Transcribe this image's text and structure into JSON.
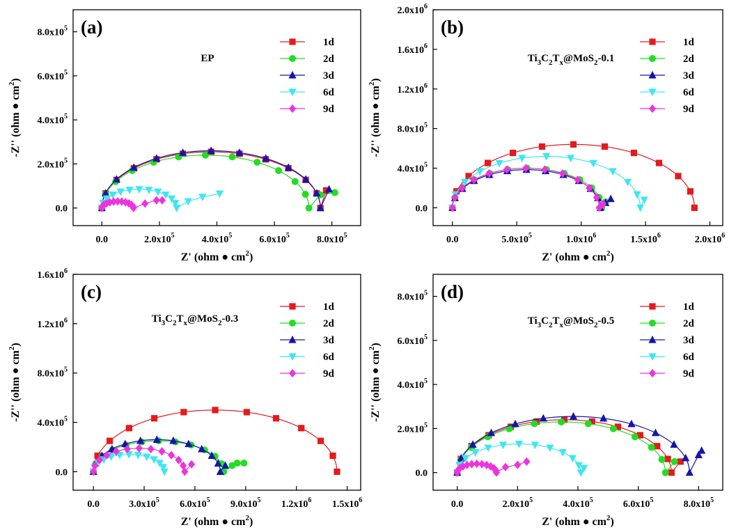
{
  "colors": {
    "1d": "#e41a1c",
    "2d": "#22dd22",
    "3d": "#1515aa",
    "6d": "#3fe6f2",
    "9d": "#ee33dd"
  },
  "chart_data": [
    {
      "type": "scatter",
      "panel": "(a)",
      "annotation": "EP",
      "x_range": [
        -100000,
        900000
      ],
      "y_range": [
        -80000,
        900000
      ],
      "x_ticks": [
        {
          "v": 0,
          "m": "0.0",
          "e": ""
        },
        {
          "v": 200000,
          "m": "2.0x10",
          "e": "5"
        },
        {
          "v": 400000,
          "m": "4.0x10",
          "e": "5"
        },
        {
          "v": 600000,
          "m": "6.0x10",
          "e": "5"
        },
        {
          "v": 800000,
          "m": "8.0x10",
          "e": "5"
        }
      ],
      "y_ticks": [
        {
          "v": 0,
          "m": "0.0",
          "e": ""
        },
        {
          "v": 200000,
          "m": "2.0x10",
          "e": "5"
        },
        {
          "v": 400000,
          "m": "4.0x10",
          "e": "5"
        },
        {
          "v": 600000,
          "m": "6.0x10",
          "e": "5"
        },
        {
          "v": 800000,
          "m": "8.0x10",
          "e": "5"
        }
      ],
      "series": [
        {
          "name": "1d",
          "marker": "square",
          "semicircle": {
            "x0": 0,
            "x1": 760000,
            "h": 255000
          },
          "tail": [
            [
              780000,
              80000
            ]
          ]
        },
        {
          "name": "2d",
          "marker": "circle",
          "semicircle": {
            "x0": 0,
            "x1": 720000,
            "h": 240000
          },
          "tail": [
            [
              760000,
              60000
            ],
            [
              810000,
              70000
            ]
          ]
        },
        {
          "name": "3d",
          "marker": "triangle-up",
          "semicircle": {
            "x0": 0,
            "x1": 760000,
            "h": 260000
          },
          "tail": [
            [
              790000,
              85000
            ]
          ]
        },
        {
          "name": "6d",
          "marker": "triangle-down",
          "semicircle": {
            "x0": 0,
            "x1": 260000,
            "h": 85000
          },
          "tail": [
            [
              300000,
              30000
            ],
            [
              350000,
              50000
            ],
            [
              410000,
              65000
            ]
          ]
        },
        {
          "name": "9d",
          "marker": "diamond",
          "semicircle": {
            "x0": 0,
            "x1": 110000,
            "h": 30000
          },
          "tail": [
            [
              150000,
              20000
            ],
            [
              190000,
              35000
            ],
            [
              210000,
              35000
            ]
          ]
        }
      ]
    },
    {
      "type": "scatter",
      "panel": "(b)",
      "annotation": {
        "pre": "Ti",
        "s1": "3",
        "m1": "C",
        "s2": "2",
        "m2": "T",
        "s3": "x",
        "m3": "@MoS",
        "s4": "2",
        "post": "-0.1"
      },
      "x_range": [
        -150000,
        2100000
      ],
      "y_range": [
        -180000,
        2000000
      ],
      "x_ticks": [
        {
          "v": 0,
          "m": "0.0",
          "e": ""
        },
        {
          "v": 500000,
          "m": "5.0x10",
          "e": "5"
        },
        {
          "v": 1000000,
          "m": "1.0x10",
          "e": "6"
        },
        {
          "v": 1500000,
          "m": "1.5x10",
          "e": "6"
        },
        {
          "v": 2000000,
          "m": "2.0x10",
          "e": "6"
        }
      ],
      "y_ticks": [
        {
          "v": 0,
          "m": "0.0",
          "e": ""
        },
        {
          "v": 400000,
          "m": "4.0x10",
          "e": "5"
        },
        {
          "v": 800000,
          "m": "8.0x10",
          "e": "5"
        },
        {
          "v": 1200000,
          "m": "1.2x10",
          "e": "6"
        },
        {
          "v": 1600000,
          "m": "1.6x10",
          "e": "6"
        },
        {
          "v": 2000000,
          "m": "2.0x10",
          "e": "6"
        }
      ],
      "series": [
        {
          "name": "1d",
          "marker": "square",
          "semicircle": {
            "x0": 0,
            "x1": 1880000,
            "h": 640000
          },
          "tail": []
        },
        {
          "name": "2d",
          "marker": "circle",
          "semicircle": {
            "x0": 0,
            "x1": 1160000,
            "h": 400000
          },
          "tail": [
            [
              1190000,
              60000
            ]
          ]
        },
        {
          "name": "3d",
          "marker": "triangle-up",
          "semicircle": {
            "x0": 0,
            "x1": 1150000,
            "h": 385000
          },
          "tail": [
            [
              1190000,
              50000
            ],
            [
              1230000,
              90000
            ]
          ]
        },
        {
          "name": "6d",
          "marker": "triangle-down",
          "semicircle": {
            "x0": 0,
            "x1": 1460000,
            "h": 520000
          },
          "tail": [
            [
              1490000,
              80000
            ]
          ]
        },
        {
          "name": "9d",
          "marker": "diamond",
          "semicircle": {
            "x0": 0,
            "x1": 1140000,
            "h": 400000
          },
          "tail": [
            [
              1170000,
              40000
            ]
          ]
        }
      ]
    },
    {
      "type": "scatter",
      "panel": "(c)",
      "annotation": {
        "pre": "Ti",
        "s1": "3",
        "m1": "C",
        "s2": "2",
        "m2": "T",
        "s3": "x",
        "m3": "@MoS",
        "s4": "2",
        "post": "-0.3"
      },
      "x_range": [
        -120000,
        1580000
      ],
      "y_range": [
        -150000,
        1600000
      ],
      "x_ticks": [
        {
          "v": 0,
          "m": "0.0",
          "e": ""
        },
        {
          "v": 300000,
          "m": "3.0x10",
          "e": "5"
        },
        {
          "v": 600000,
          "m": "6.0x10",
          "e": "5"
        },
        {
          "v": 900000,
          "m": "9.0x10",
          "e": "5"
        },
        {
          "v": 1200000,
          "m": "1.2x10",
          "e": "6"
        },
        {
          "v": 1500000,
          "m": "1.5x10",
          "e": "6"
        }
      ],
      "y_ticks": [
        {
          "v": 0,
          "m": "0.0",
          "e": ""
        },
        {
          "v": 400000,
          "m": "4.0x10",
          "e": "5"
        },
        {
          "v": 800000,
          "m": "8.0x10",
          "e": "5"
        },
        {
          "v": 1200000,
          "m": "1.2x10",
          "e": "6"
        },
        {
          "v": 1600000,
          "m": "1.6x10",
          "e": "6"
        }
      ],
      "series": [
        {
          "name": "1d",
          "marker": "square",
          "semicircle": {
            "x0": 0,
            "x1": 1440000,
            "h": 500000
          },
          "tail": []
        },
        {
          "name": "2d",
          "marker": "circle",
          "semicircle": {
            "x0": 0,
            "x1": 770000,
            "h": 250000
          },
          "tail": [
            [
              820000,
              50000
            ],
            [
              850000,
              70000
            ],
            [
              890000,
              70000
            ]
          ]
        },
        {
          "name": "3d",
          "marker": "triangle-up",
          "semicircle": {
            "x0": 0,
            "x1": 750000,
            "h": 260000
          },
          "tail": [
            [
              780000,
              50000
            ]
          ]
        },
        {
          "name": "6d",
          "marker": "triangle-down",
          "semicircle": {
            "x0": 0,
            "x1": 420000,
            "h": 140000
          },
          "tail": []
        },
        {
          "name": "9d",
          "marker": "diamond",
          "semicircle": {
            "x0": 0,
            "x1": 540000,
            "h": 190000
          },
          "tail": [
            [
              580000,
              60000
            ]
          ]
        }
      ]
    },
    {
      "type": "scatter",
      "panel": "(d)",
      "annotation": {
        "pre": "Ti",
        "s1": "3",
        "m1": "C",
        "s2": "2",
        "m2": "T",
        "s3": "x",
        "m3": "@MoS",
        "s4": "2",
        "post": "-0.5"
      },
      "x_range": [
        -80000,
        880000
      ],
      "y_range": [
        -80000,
        900000
      ],
      "x_ticks": [
        {
          "v": 0,
          "m": "0.0",
          "e": ""
        },
        {
          "v": 200000,
          "m": "2.0x10",
          "e": "5"
        },
        {
          "v": 400000,
          "m": "4.0x10",
          "e": "5"
        },
        {
          "v": 600000,
          "m": "6.0x10",
          "e": "5"
        },
        {
          "v": 800000,
          "m": "8.0x10",
          "e": "5"
        }
      ],
      "y_ticks": [
        {
          "v": 0,
          "m": "0.0",
          "e": ""
        },
        {
          "v": 200000,
          "m": "2.0x10",
          "e": "5"
        },
        {
          "v": 400000,
          "m": "4.0x10",
          "e": "5"
        },
        {
          "v": 600000,
          "m": "6.0x10",
          "e": "5"
        },
        {
          "v": 800000,
          "m": "8.0x10",
          "e": "5"
        }
      ],
      "series": [
        {
          "name": "1d",
          "marker": "square",
          "semicircle": {
            "x0": 0,
            "x1": 710000,
            "h": 240000
          },
          "tail": [
            [
              740000,
              50000
            ]
          ]
        },
        {
          "name": "2d",
          "marker": "circle",
          "semicircle": {
            "x0": 0,
            "x1": 690000,
            "h": 230000
          },
          "tail": [
            [
              720000,
              50000
            ]
          ]
        },
        {
          "name": "3d",
          "marker": "triangle-up",
          "semicircle": {
            "x0": 0,
            "x1": 770000,
            "h": 255000
          },
          "tail": [
            [
              800000,
              80000
            ],
            [
              810000,
              100000
            ]
          ]
        },
        {
          "name": "6d",
          "marker": "triangle-down",
          "semicircle": {
            "x0": 0,
            "x1": 410000,
            "h": 130000
          },
          "tail": [
            [
              420000,
              20000
            ]
          ]
        },
        {
          "name": "9d",
          "marker": "diamond",
          "semicircle": {
            "x0": 0,
            "x1": 130000,
            "h": 40000
          },
          "tail": [
            [
              160000,
              25000
            ],
            [
              200000,
              35000
            ],
            [
              230000,
              50000
            ]
          ]
        }
      ]
    }
  ],
  "axes": {
    "xlabel": {
      "pre": "Z' (ohm ● cm",
      "sup": "2",
      "post": ")"
    },
    "ylabel": {
      "pre": "-Z'' (ohm ● cm",
      "sup": "2",
      "post": ")"
    }
  }
}
